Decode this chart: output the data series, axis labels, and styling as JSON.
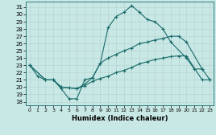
{
  "xlabel": "Humidex (Indice chaleur)",
  "bg_color": "#c8e8e5",
  "grid_color": "#b8d5d2",
  "line_color": "#1a6b6b",
  "xlim": [
    -0.5,
    23.5
  ],
  "ylim": [
    17.5,
    31.8
  ],
  "xticks": [
    0,
    1,
    2,
    3,
    4,
    5,
    6,
    7,
    8,
    9,
    10,
    11,
    12,
    13,
    14,
    15,
    16,
    17,
    18,
    19,
    20,
    21,
    22,
    23
  ],
  "yticks": [
    18,
    19,
    20,
    21,
    22,
    23,
    24,
    25,
    26,
    27,
    28,
    29,
    30,
    31
  ],
  "curve1": {
    "x": [
      0,
      1,
      2,
      3,
      4,
      5,
      6,
      7,
      8,
      9,
      10,
      11,
      12,
      13,
      14,
      15,
      16,
      17,
      18,
      20,
      21,
      22
    ],
    "y": [
      23,
      21.5,
      21,
      21,
      19.8,
      18.4,
      18.4,
      21,
      21.3,
      23.3,
      28.2,
      29.7,
      30.3,
      31.2,
      30.3,
      29.3,
      29,
      28,
      26.2,
      24,
      22.5,
      22.5
    ]
  },
  "curve2": {
    "x": [
      0,
      2,
      3,
      4,
      5,
      6,
      7,
      8,
      9,
      10,
      11,
      12,
      13,
      14,
      15,
      16,
      17,
      18,
      19,
      20,
      22,
      23
    ],
    "y": [
      23,
      21,
      21,
      20,
      19.9,
      19.8,
      20.4,
      21.3,
      23.3,
      24,
      24.5,
      25,
      25.4,
      26,
      26.2,
      26.5,
      26.7,
      27,
      27,
      26.2,
      22.5,
      21
    ]
  },
  "curve3": {
    "x": [
      0,
      2,
      3,
      4,
      5,
      6,
      7,
      8,
      9,
      10,
      11,
      12,
      13,
      14,
      15,
      16,
      17,
      18,
      19,
      20,
      22,
      23
    ],
    "y": [
      23,
      21,
      21,
      20,
      19.9,
      19.8,
      20.2,
      20.8,
      21.2,
      21.5,
      22,
      22.3,
      22.7,
      23.2,
      23.5,
      23.8,
      24,
      24.2,
      24.3,
      24.3,
      21,
      21
    ]
  }
}
